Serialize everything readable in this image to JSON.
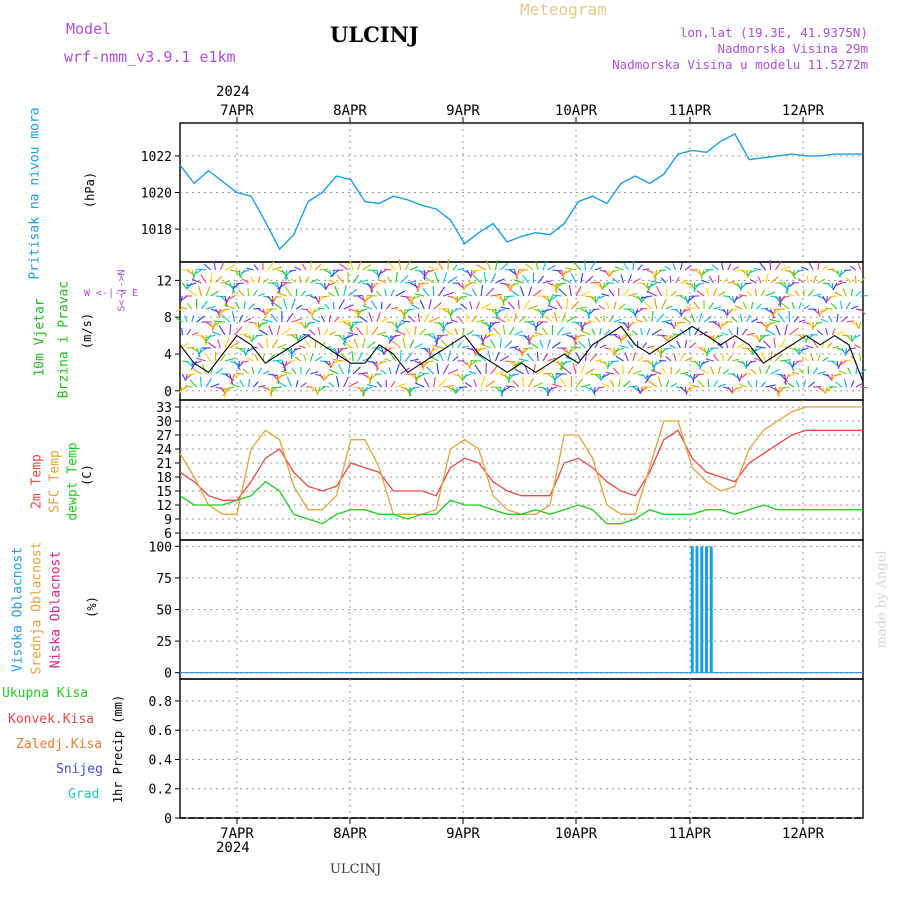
{
  "header": {
    "model_label": "Model",
    "model_name": "wrf-nmm_v3.9.1  e1km",
    "station": "ULCINJ",
    "product": "Meteogram",
    "lonlat": "lon,lat (19.3E, 41.9375N)",
    "elevation": "Nadmorska Visina 29m",
    "model_elevation": "Nadmorska Visina u modelu 11.5272m"
  },
  "footer": {
    "station": "ULCINJ",
    "credit": "made by Angel"
  },
  "colors": {
    "pressure": "#1a9ee6",
    "temp2m": "#e84a4a",
    "sfc": "#e6a23c",
    "dew": "#22cc22",
    "cloud_high": "#1a9ee6",
    "cloud_mid": "#e6a23c",
    "cloud_low": "#e0208a",
    "wind_label": "#22bb22",
    "compass": "#b04ee0"
  },
  "chart_data": [
    {
      "type": "line",
      "panel": "pressure",
      "ylabel": "(hPa)",
      "side_label": "Pritisak na nivou mora",
      "year": "2024",
      "date_ticks": [
        "7APR",
        "8APR",
        "9APR",
        "10APR",
        "11APR",
        "12APR"
      ],
      "x_hours_from_start": [
        0,
        3,
        6,
        9,
        12,
        15,
        18,
        21,
        24,
        27,
        30,
        33,
        36,
        39,
        42,
        45,
        48,
        51,
        54,
        57,
        60,
        63,
        66,
        69,
        72,
        75,
        78,
        81,
        84,
        87,
        90,
        93,
        96,
        99,
        102,
        105,
        108,
        111,
        114,
        117,
        120,
        123,
        126,
        129,
        132,
        135,
        138,
        141,
        144
      ],
      "y": [
        1021.5,
        1020.5,
        1021.2,
        1020.6,
        1020.0,
        1019.8,
        1018.4,
        1016.9,
        1017.7,
        1019.5,
        1020.0,
        1020.9,
        1020.7,
        1019.5,
        1019.4,
        1019.8,
        1019.6,
        1019.3,
        1019.1,
        1018.5,
        1017.2,
        1017.8,
        1018.3,
        1017.3,
        1017.6,
        1017.8,
        1017.7,
        1018.3,
        1019.5,
        1019.8,
        1019.4,
        1020.5,
        1020.9,
        1020.5,
        1021.0,
        1022.1,
        1022.3,
        1022.2,
        1022.8,
        1023.2,
        1021.8,
        1021.9,
        1022.0,
        1022.1,
        1022.0,
        1022.0,
        1022.1,
        1022.1,
        1022.1
      ],
      "yticks": [
        1018,
        1020,
        1022
      ],
      "ylim": [
        1016.2,
        1023.8
      ]
    },
    {
      "type": "line",
      "panel": "wind",
      "ylabel": "(m/s)",
      "side_label_1": "10m Vjetar",
      "side_label_2": "Brzina i Pravac",
      "compass": "W <-|-> E",
      "compass_ns": "S<-|->N",
      "series": [
        {
          "name": "speed",
          "values": [
            5,
            3,
            2,
            4,
            6,
            5,
            3,
            4,
            5,
            6,
            5,
            4,
            3,
            3,
            5,
            4,
            2,
            3,
            4,
            5,
            6,
            4,
            3,
            2,
            3,
            2,
            3,
            4,
            3,
            5,
            6,
            7,
            5,
            4,
            5,
            6,
            7,
            6,
            5,
            6,
            5,
            3,
            4,
            5,
            6,
            5,
            6,
            5,
            1
          ]
        }
      ],
      "x_hours_from_start": [
        0,
        3,
        6,
        9,
        12,
        15,
        18,
        21,
        24,
        27,
        30,
        33,
        36,
        39,
        42,
        45,
        48,
        51,
        54,
        57,
        60,
        63,
        66,
        69,
        72,
        75,
        78,
        81,
        84,
        87,
        90,
        93,
        96,
        99,
        102,
        105,
        108,
        111,
        114,
        117,
        120,
        123,
        126,
        129,
        132,
        135,
        138,
        141,
        144
      ],
      "yticks": [
        0,
        4,
        8,
        12
      ],
      "ylim": [
        -1,
        14
      ]
    },
    {
      "type": "line",
      "panel": "temperature",
      "ylabel": "(C)",
      "side_label_1": "2m Temp",
      "side_label_2": "SFC Temp",
      "side_label_3": "dewpt Temp",
      "x_hours_from_start": [
        0,
        3,
        6,
        9,
        12,
        15,
        18,
        21,
        24,
        27,
        30,
        33,
        36,
        39,
        42,
        45,
        48,
        51,
        54,
        57,
        60,
        63,
        66,
        69,
        72,
        75,
        78,
        81,
        84,
        87,
        90,
        93,
        96,
        99,
        102,
        105,
        108,
        111,
        114,
        117,
        120,
        123,
        126,
        129,
        132,
        135,
        138,
        141,
        144
      ],
      "series": [
        {
          "name": "2m Temp",
          "values": [
            19,
            17,
            14,
            13,
            13,
            17,
            22,
            24,
            19,
            16,
            15,
            16,
            21,
            20,
            19,
            15,
            15,
            15,
            14,
            20,
            22,
            21,
            17,
            15,
            14,
            14,
            14,
            21,
            22,
            20,
            17,
            15,
            14,
            19,
            26,
            28,
            22,
            19,
            18,
            17,
            21,
            23,
            25,
            27,
            28,
            28,
            28,
            28,
            28
          ]
        },
        {
          "name": "SFC Temp",
          "values": [
            23,
            18,
            12,
            10,
            10,
            24,
            28,
            26,
            16,
            11,
            11,
            14,
            26,
            26,
            20,
            10,
            10,
            10,
            11,
            24,
            26,
            24,
            14,
            11,
            10,
            10,
            12,
            27,
            27,
            22,
            12,
            10,
            10,
            20,
            30,
            30,
            20,
            17,
            15,
            16,
            24,
            28,
            30,
            32,
            33,
            33,
            33,
            33,
            33
          ]
        },
        {
          "name": "dewpt Temp",
          "values": [
            14,
            12,
            12,
            12,
            13,
            14,
            17,
            15,
            10,
            9,
            8,
            10,
            11,
            11,
            10,
            10,
            9,
            10,
            10,
            13,
            12,
            12,
            11,
            10,
            10,
            11,
            10,
            11,
            12,
            11,
            8,
            8,
            9,
            11,
            10,
            10,
            10,
            11,
            11,
            10,
            11,
            12,
            11,
            11,
            11,
            11,
            11,
            11,
            11
          ]
        }
      ],
      "yticks": [
        6,
        9,
        12,
        15,
        18,
        21,
        24,
        27,
        30,
        33
      ],
      "ylim": [
        4.5,
        34.5
      ]
    },
    {
      "type": "bar",
      "panel": "cloud",
      "ylabel": "(%)",
      "side_label_1": "Visoka Oblacnost",
      "side_label_2": "Srednja Oblacnost",
      "side_label_3": "Niska Oblacnost",
      "high_cloud_hours": [
        108,
        109,
        110,
        111,
        112
      ],
      "high_cloud_values": [
        100,
        100,
        100,
        100,
        100
      ],
      "yticks": [
        0,
        25,
        50,
        75,
        100
      ],
      "ylim": [
        -5,
        105
      ]
    },
    {
      "type": "bar",
      "panel": "precip",
      "ylabel": "1hr Precip (mm)",
      "legend": [
        "Ukupna Kisa",
        "Konvek.Kisa",
        "Zaledj.Kisa",
        "Snijeg",
        "Grad"
      ],
      "yticks": [
        0,
        0.2,
        0.4,
        0.6,
        0.8
      ],
      "ylim": [
        0,
        0.95
      ]
    }
  ]
}
